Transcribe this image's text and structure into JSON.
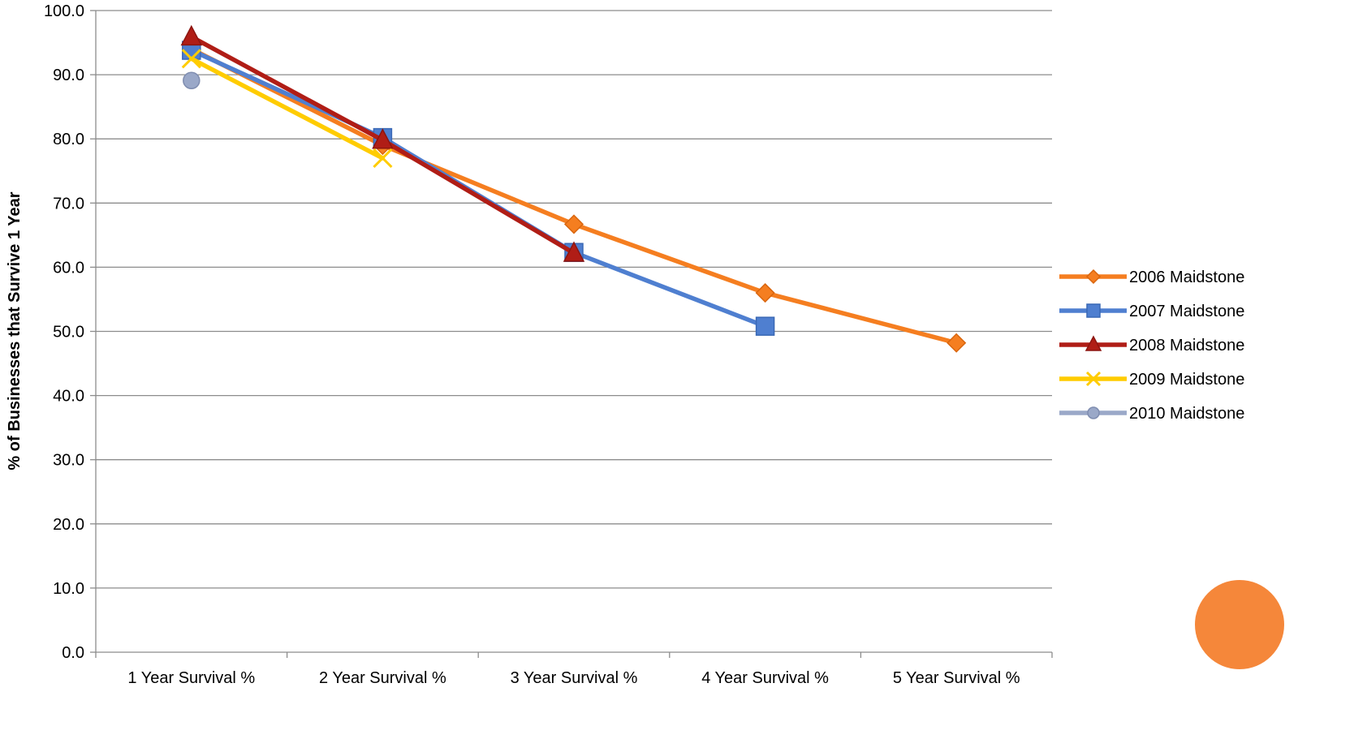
{
  "chart_data": {
    "type": "line",
    "title": "",
    "xlabel": "",
    "ylabel": "% of Businesses that Survive 1 Year",
    "categories": [
      "1 Year Survival %",
      "2 Year Survival %",
      "3 Year Survival %",
      "4 Year Survival %",
      "5 Year Survival %"
    ],
    "ylim": [
      0,
      100
    ],
    "yticks": [
      "0.0",
      "10.0",
      "20.0",
      "30.0",
      "40.0",
      "50.0",
      "60.0",
      "70.0",
      "80.0",
      "90.0",
      "100.0"
    ],
    "grid": true,
    "legend_position": "right",
    "series": [
      {
        "name": "2006 Maidstone",
        "values": [
          94.0,
          79.0,
          66.7,
          56.0,
          48.2
        ],
        "color": "#F57E20",
        "marker": "diamond"
      },
      {
        "name": "2007 Maidstone",
        "values": [
          93.8,
          80.2,
          62.3,
          50.8,
          null
        ],
        "color": "#4F7FD0",
        "marker": "square"
      },
      {
        "name": "2008 Maidstone",
        "values": [
          95.9,
          79.8,
          62.2,
          null,
          null
        ],
        "color": "#B01D16",
        "marker": "triangle"
      },
      {
        "name": "2009 Maidstone",
        "values": [
          92.5,
          77.0,
          null,
          null,
          null
        ],
        "color": "#FFCC00",
        "marker": "x"
      },
      {
        "name": "2010 Maidstone",
        "values": [
          89.1,
          null,
          null,
          null,
          null
        ],
        "color": "#9AA8C8",
        "marker": "circle"
      }
    ],
    "decorations": {
      "circle_color": "#F5873A"
    }
  }
}
